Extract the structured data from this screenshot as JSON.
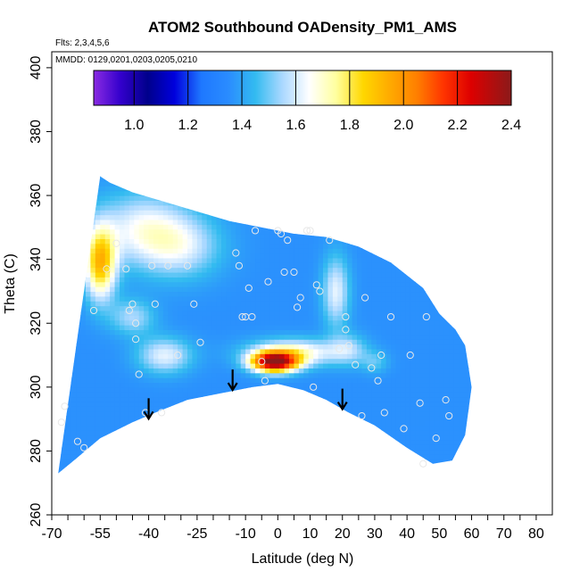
{
  "chart_data": {
    "type": "heatmap",
    "title": "ATOM2 Southbound OADensity_PM1_AMS",
    "flights_note": "Flts: 2,3,4,5,6",
    "dates_note": "MMDD: 0129,0201,0203,0205,0210",
    "xlabel": "Latitude (deg N)",
    "ylabel": "Theta (C)",
    "xlim": [
      -70,
      85
    ],
    "ylim": [
      260,
      405
    ],
    "xticks": [
      -70,
      -55,
      -40,
      -25,
      -10,
      0,
      10,
      20,
      30,
      40,
      50,
      60,
      70,
      80
    ],
    "xtick_labels": [
      "-70",
      "-55",
      "-40",
      "-25",
      "-10",
      "0",
      "10",
      "20",
      "30",
      "40",
      "50",
      "60",
      "70",
      "80"
    ],
    "yticks": [
      260,
      280,
      300,
      320,
      340,
      360,
      380,
      400
    ],
    "ytick_labels": [
      "260",
      "280",
      "300",
      "320",
      "340",
      "360",
      "380",
      "400"
    ],
    "colorbar": {
      "range": [
        0.85,
        2.4
      ],
      "ticks": [
        1.0,
        1.2,
        1.4,
        1.6,
        1.8,
        2.0,
        2.2,
        2.4
      ],
      "tick_labels": [
        "1.0",
        "1.2",
        "1.4",
        "1.6",
        "1.8",
        "2.0",
        "2.2",
        "2.4"
      ],
      "stops": [
        {
          "v": 0.85,
          "color": "#8a2be2"
        },
        {
          "v": 0.95,
          "color": "#3300cc"
        },
        {
          "v": 1.05,
          "color": "#00008b"
        },
        {
          "v": 1.15,
          "color": "#0000dd"
        },
        {
          "v": 1.25,
          "color": "#1e78ff"
        },
        {
          "v": 1.35,
          "color": "#2a8cff"
        },
        {
          "v": 1.45,
          "color": "#33bbf0"
        },
        {
          "v": 1.55,
          "color": "#aad8ff"
        },
        {
          "v": 1.65,
          "color": "#ffffff"
        },
        {
          "v": 1.75,
          "color": "#ffff9e"
        },
        {
          "v": 1.85,
          "color": "#ffd700"
        },
        {
          "v": 1.95,
          "color": "#ffaa00"
        },
        {
          "v": 2.05,
          "color": "#ff7f00"
        },
        {
          "v": 2.15,
          "color": "#ff3300"
        },
        {
          "v": 2.25,
          "color": "#dd0000"
        },
        {
          "v": 2.4,
          "color": "#8b1a1a"
        }
      ]
    },
    "background_value": 1.36,
    "domain_top": [
      [
        -55,
        366
      ],
      [
        -52,
        364
      ],
      [
        -45,
        361
      ],
      [
        -35,
        358
      ],
      [
        -25,
        355
      ],
      [
        -15,
        352
      ],
      [
        -5,
        350
      ],
      [
        5,
        348
      ],
      [
        15,
        347
      ],
      [
        25,
        344
      ],
      [
        35,
        339
      ],
      [
        45,
        331
      ],
      [
        50,
        323
      ],
      [
        55,
        318
      ],
      [
        58,
        313
      ]
    ],
    "domain_bottom": [
      [
        -68,
        273
      ],
      [
        -62,
        278
      ],
      [
        -55,
        284
      ],
      [
        -45,
        289
      ],
      [
        -38,
        292
      ],
      [
        -28,
        296
      ],
      [
        -18,
        298
      ],
      [
        -8,
        300
      ],
      [
        0,
        301
      ],
      [
        8,
        299
      ],
      [
        15,
        296
      ],
      [
        22,
        292
      ],
      [
        30,
        288
      ],
      [
        40,
        281
      ],
      [
        48,
        276
      ],
      [
        54,
        277
      ],
      [
        58,
        285
      ],
      [
        60,
        300
      ]
    ],
    "anomalies": [
      {
        "lat": -55,
        "theta": 339,
        "value": 1.9,
        "sx": 3.5,
        "sy": 8
      },
      {
        "lat": -42,
        "theta": 350,
        "value": 1.62,
        "sx": 10,
        "sy": 8
      },
      {
        "lat": -30,
        "theta": 344,
        "value": 1.58,
        "sx": 9,
        "sy": 7
      },
      {
        "lat": -45,
        "theta": 322,
        "value": 1.55,
        "sx": 5,
        "sy": 4
      },
      {
        "lat": -35,
        "theta": 310,
        "value": 1.62,
        "sx": 6,
        "sy": 4
      },
      {
        "lat": -1,
        "theta": 308,
        "value": 2.35,
        "sx": 5,
        "sy": 2.2
      },
      {
        "lat": 5,
        "theta": 311,
        "value": 1.7,
        "sx": 10,
        "sy": 3
      },
      {
        "lat": 18,
        "theta": 330,
        "value": 1.62,
        "sx": 3,
        "sy": 8
      },
      {
        "lat": 22,
        "theta": 312,
        "value": 1.52,
        "sx": 4,
        "sy": 3.5
      },
      {
        "lat": 30,
        "theta": 308,
        "value": 1.48,
        "sx": 3,
        "sy": 2.5
      }
    ],
    "sample_points": [
      [
        -67,
        289
      ],
      [
        -66,
        294
      ],
      [
        -62,
        283
      ],
      [
        -60,
        281
      ],
      [
        -57,
        324
      ],
      [
        -53,
        337
      ],
      [
        -50,
        345
      ],
      [
        -47,
        337
      ],
      [
        -46,
        324
      ],
      [
        -45,
        326
      ],
      [
        -44,
        315
      ],
      [
        -44,
        320
      ],
      [
        -43,
        304
      ],
      [
        -41,
        292
      ],
      [
        -39,
        338
      ],
      [
        -38,
        326
      ],
      [
        -36,
        292
      ],
      [
        -34,
        338
      ],
      [
        -31,
        310
      ],
      [
        -28,
        338
      ],
      [
        -26,
        326
      ],
      [
        -24,
        314
      ],
      [
        -13,
        342
      ],
      [
        -12,
        338
      ],
      [
        -11,
        322
      ],
      [
        -10,
        322
      ],
      [
        -9,
        331
      ],
      [
        -8,
        322
      ],
      [
        -7,
        349
      ],
      [
        -5,
        308
      ],
      [
        -4,
        302
      ],
      [
        -3,
        333
      ],
      [
        0,
        349
      ],
      [
        1,
        348
      ],
      [
        2,
        336
      ],
      [
        3,
        346
      ],
      [
        5,
        336
      ],
      [
        6,
        325
      ],
      [
        7,
        328
      ],
      [
        9,
        349
      ],
      [
        10,
        349
      ],
      [
        11,
        300
      ],
      [
        12,
        332
      ],
      [
        13,
        330
      ],
      [
        16,
        346
      ],
      [
        19,
        312
      ],
      [
        21,
        318
      ],
      [
        21,
        322
      ],
      [
        22,
        313
      ],
      [
        24,
        307
      ],
      [
        26,
        291
      ],
      [
        27,
        328
      ],
      [
        29,
        306
      ],
      [
        31,
        302
      ],
      [
        32,
        310
      ],
      [
        33,
        292
      ],
      [
        35,
        322
      ],
      [
        39,
        287
      ],
      [
        41,
        310
      ],
      [
        44,
        295
      ],
      [
        45,
        276
      ],
      [
        46,
        322
      ],
      [
        49,
        284
      ],
      [
        52,
        296
      ],
      [
        53,
        291
      ]
    ],
    "arrows": [
      {
        "lat": -40,
        "theta": 294
      },
      {
        "lat": -14,
        "theta": 303
      },
      {
        "lat": 20,
        "theta": 297
      }
    ]
  }
}
